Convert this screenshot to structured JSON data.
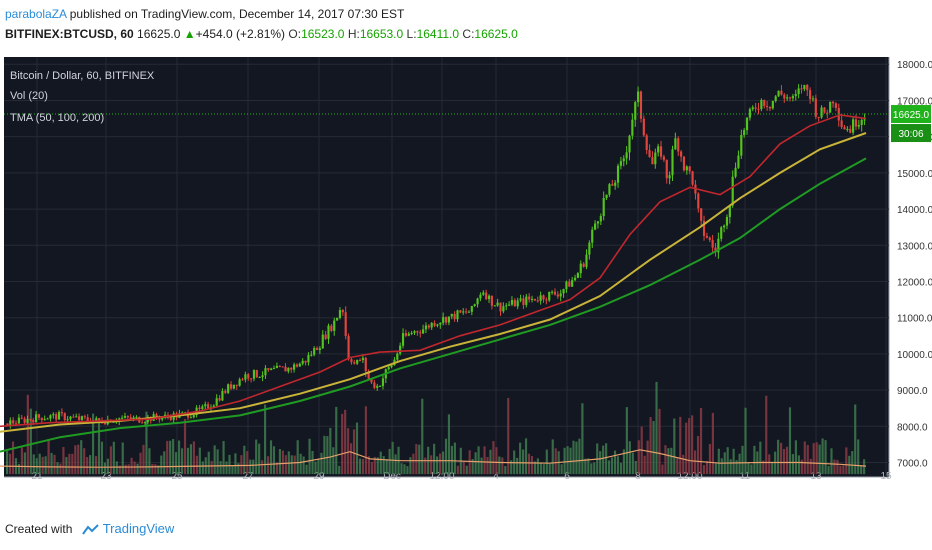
{
  "header": {
    "author": "parabolaZA",
    "published_text": " published on TradingView.com, December 14, 2017 07:30 EST",
    "symbol": "BITFINEX:BTCUSD, 60",
    "last": "16625.0",
    "change": "+454.0 (+2.81%)",
    "o_label": "O:",
    "o_value": "16523.0",
    "h_label": "H:",
    "h_value": "16653.0",
    "l_label": "L:",
    "l_value": "16411.0",
    "c_label": "C:",
    "c_value": "16625.0"
  },
  "legend": {
    "title": "Bitcoin / Dollar, 60, BITFINEX",
    "vol": "Vol (20)",
    "tma": "TMA (50, 100, 200)"
  },
  "price_tag": {
    "price": "16625.0",
    "countdown": "30:06"
  },
  "footer": {
    "created_with": "Created with",
    "brand": "TradingView"
  },
  "colors": {
    "background": "#131722",
    "grid": "#262a35",
    "candle_up": "#53c41d",
    "candle_down": "#e0453e",
    "ma_fast": "#c1272d",
    "ma_mid": "#c9b439",
    "ma_slow": "#1f9b22",
    "vol_ma": "#e6a06a",
    "axis_text": "#b2b5be",
    "price_tag": "#20b21a"
  },
  "chart_data": {
    "type": "candlestick",
    "title": "Bitcoin / Dollar, 60, BITFINEX",
    "y_axis": {
      "ticks": [
        7000,
        8000,
        9000,
        10000,
        11000,
        12000,
        13000,
        14000,
        15000,
        16000,
        17000,
        18000
      ],
      "tick_labels": [
        "7000.0",
        "8000.0",
        "9000.0",
        "10000.0",
        "11000.0",
        "12000.0",
        "13000.0",
        "14000.0",
        "15000.0",
        "16000.0",
        "17000.0",
        "18000.0"
      ],
      "range": [
        6600,
        18200
      ]
    },
    "x_axis": {
      "labels": [
        "21",
        "23",
        "25",
        "27",
        "29",
        "Dec",
        "12:00",
        "4",
        "6",
        "8",
        "12:00",
        "11",
        "13",
        "15"
      ],
      "label_x": [
        37,
        106,
        177,
        248,
        319,
        392,
        442,
        496,
        567,
        638,
        690,
        745,
        816,
        886
      ]
    },
    "close_path": [
      [
        0,
        8050
      ],
      [
        20,
        8150
      ],
      [
        40,
        8250
      ],
      [
        60,
        8280
      ],
      [
        80,
        8200
      ],
      [
        100,
        8150
      ],
      [
        120,
        8220
      ],
      [
        140,
        8200
      ],
      [
        160,
        8250
      ],
      [
        180,
        8300
      ],
      [
        200,
        8420
      ],
      [
        215,
        8700
      ],
      [
        230,
        9100
      ],
      [
        245,
        9400
      ],
      [
        260,
        9450
      ],
      [
        275,
        9550
      ],
      [
        290,
        9600
      ],
      [
        305,
        9800
      ],
      [
        320,
        10300
      ],
      [
        335,
        10900
      ],
      [
        342,
        11400
      ],
      [
        348,
        10000
      ],
      [
        355,
        9700
      ],
      [
        362,
        9900
      ],
      [
        370,
        9200
      ],
      [
        378,
        9100
      ],
      [
        386,
        9500
      ],
      [
        394,
        9800
      ],
      [
        402,
        10400
      ],
      [
        412,
        10600
      ],
      [
        424,
        10700
      ],
      [
        436,
        10900
      ],
      [
        448,
        11000
      ],
      [
        460,
        11100
      ],
      [
        472,
        11200
      ],
      [
        482,
        11800
      ],
      [
        490,
        11500
      ],
      [
        500,
        11300
      ],
      [
        515,
        11400
      ],
      [
        530,
        11500
      ],
      [
        545,
        11600
      ],
      [
        560,
        11700
      ],
      [
        575,
        12100
      ],
      [
        585,
        12600
      ],
      [
        595,
        13600
      ],
      [
        605,
        14300
      ],
      [
        615,
        14800
      ],
      [
        625,
        15500
      ],
      [
        632,
        16500
      ],
      [
        638,
        17100
      ],
      [
        645,
        16000
      ],
      [
        652,
        15200
      ],
      [
        660,
        15700
      ],
      [
        668,
        14800
      ],
      [
        676,
        16000
      ],
      [
        684,
        15200
      ],
      [
        692,
        14900
      ],
      [
        700,
        13500
      ],
      [
        708,
        13200
      ],
      [
        715,
        12800
      ],
      [
        722,
        13500
      ],
      [
        730,
        14300
      ],
      [
        738,
        15700
      ],
      [
        746,
        16400
      ],
      [
        754,
        16800
      ],
      [
        762,
        17000
      ],
      [
        770,
        16900
      ],
      [
        778,
        17200
      ],
      [
        786,
        17100
      ],
      [
        794,
        17000
      ],
      [
        802,
        17400
      ],
      [
        810,
        17200
      ],
      [
        818,
        16600
      ],
      [
        826,
        16700
      ],
      [
        834,
        17100
      ],
      [
        842,
        16300
      ],
      [
        850,
        16200
      ],
      [
        858,
        16500
      ],
      [
        866,
        16625
      ]
    ],
    "ma_fast_path": [
      [
        0,
        8000
      ],
      [
        50,
        8100
      ],
      [
        100,
        8150
      ],
      [
        150,
        8200
      ],
      [
        200,
        8420
      ],
      [
        240,
        8700
      ],
      [
        280,
        9100
      ],
      [
        320,
        9500
      ],
      [
        350,
        9900
      ],
      [
        380,
        10050
      ],
      [
        420,
        10100
      ],
      [
        460,
        10500
      ],
      [
        500,
        10800
      ],
      [
        540,
        11200
      ],
      [
        570,
        11500
      ],
      [
        600,
        12100
      ],
      [
        630,
        13300
      ],
      [
        660,
        14200
      ],
      [
        690,
        14600
      ],
      [
        720,
        14400
      ],
      [
        750,
        14900
      ],
      [
        780,
        15800
      ],
      [
        810,
        16300
      ],
      [
        840,
        16600
      ],
      [
        866,
        16500
      ]
    ],
    "ma_mid_path": [
      [
        0,
        7850
      ],
      [
        60,
        8050
      ],
      [
        120,
        8150
      ],
      [
        180,
        8300
      ],
      [
        240,
        8500
      ],
      [
        300,
        8900
      ],
      [
        350,
        9300
      ],
      [
        400,
        9800
      ],
      [
        450,
        10200
      ],
      [
        500,
        10550
      ],
      [
        550,
        10950
      ],
      [
        600,
        11600
      ],
      [
        650,
        12600
      ],
      [
        700,
        13500
      ],
      [
        740,
        14300
      ],
      [
        780,
        15000
      ],
      [
        820,
        15650
      ],
      [
        866,
        16100
      ]
    ],
    "ma_slow_path": [
      [
        0,
        7300
      ],
      [
        60,
        7700
      ],
      [
        120,
        7950
      ],
      [
        180,
        8100
      ],
      [
        240,
        8300
      ],
      [
        300,
        8700
      ],
      [
        350,
        9100
      ],
      [
        400,
        9600
      ],
      [
        450,
        10000
      ],
      [
        500,
        10400
      ],
      [
        550,
        10800
      ],
      [
        600,
        11300
      ],
      [
        650,
        11900
      ],
      [
        700,
        12600
      ],
      [
        740,
        13200
      ],
      [
        780,
        14000
      ],
      [
        820,
        14700
      ],
      [
        866,
        15400
      ]
    ],
    "last_price": 16625,
    "volume_bars": 290,
    "volume_ma_path": [
      [
        0,
        6900
      ],
      [
        50,
        6880
      ],
      [
        100,
        6870
      ],
      [
        150,
        6880
      ],
      [
        200,
        6900
      ],
      [
        250,
        6920
      ],
      [
        300,
        7000
      ],
      [
        330,
        7150
      ],
      [
        350,
        7300
      ],
      [
        370,
        7100
      ],
      [
        400,
        7050
      ],
      [
        450,
        7050
      ],
      [
        500,
        7000
      ],
      [
        550,
        6980
      ],
      [
        600,
        7100
      ],
      [
        640,
        7350
      ],
      [
        660,
        7250
      ],
      [
        690,
        7050
      ],
      [
        720,
        6980
      ],
      [
        760,
        7000
      ],
      [
        800,
        7000
      ],
      [
        840,
        6950
      ],
      [
        866,
        6900
      ]
    ]
  }
}
